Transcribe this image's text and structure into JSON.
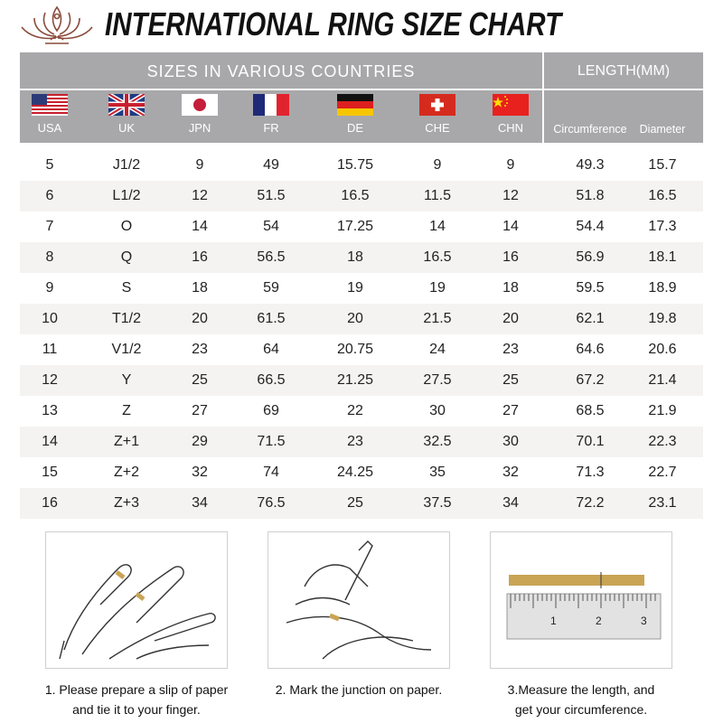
{
  "title": "INTERNATIONAL RING SIZE CHART",
  "header": {
    "group_left": "SIZES IN VARIOUS COUNTRIES",
    "group_right": "LENGTH(MM)",
    "countries": [
      {
        "label": "USA",
        "flag": "us-flag"
      },
      {
        "label": "UK",
        "flag": "uk-flag"
      },
      {
        "label": "JPN",
        "flag": "japan-flag"
      },
      {
        "label": "FR",
        "flag": "france-flag"
      },
      {
        "label": "DE",
        "flag": "germany-flag"
      },
      {
        "label": "CHE",
        "flag": "switzerland-flag"
      },
      {
        "label": "CHN",
        "flag": "china-flag"
      }
    ],
    "length_cols": [
      "Circumference",
      "Diameter"
    ]
  },
  "colors": {
    "header_bg": "#a8a8aa",
    "alt_row": "#f4f3f1",
    "tape": "#c9a455"
  },
  "rows": [
    [
      "5",
      "J1/2",
      "9",
      "49",
      "15.75",
      "9",
      "9",
      "49.3",
      "15.7"
    ],
    [
      "6",
      "L1/2",
      "12",
      "51.5",
      "16.5",
      "11.5",
      "12",
      "51.8",
      "16.5"
    ],
    [
      "7",
      "O",
      "14",
      "54",
      "17.25",
      "14",
      "14",
      "54.4",
      "17.3"
    ],
    [
      "8",
      "Q",
      "16",
      "56.5",
      "18",
      "16.5",
      "16",
      "56.9",
      "18.1"
    ],
    [
      "9",
      "S",
      "18",
      "59",
      "19",
      "19",
      "18",
      "59.5",
      "18.9"
    ],
    [
      "10",
      "T1/2",
      "20",
      "61.5",
      "20",
      "21.5",
      "20",
      "62.1",
      "19.8"
    ],
    [
      "11",
      "V1/2",
      "23",
      "64",
      "20.75",
      "24",
      "23",
      "64.6",
      "20.6"
    ],
    [
      "12",
      "Y",
      "25",
      "66.5",
      "21.25",
      "27.5",
      "25",
      "67.2",
      "21.4"
    ],
    [
      "13",
      "Z",
      "27",
      "69",
      "22",
      "30",
      "27",
      "68.5",
      "21.9"
    ],
    [
      "14",
      "Z+1",
      "29",
      "71.5",
      "23",
      "32.5",
      "30",
      "70.1",
      "22.3"
    ],
    [
      "15",
      "Z+2",
      "32",
      "74",
      "24.25",
      "35",
      "32",
      "71.3",
      "22.7"
    ],
    [
      "16",
      "Z+3",
      "34",
      "76.5",
      "25",
      "37.5",
      "34",
      "72.2",
      "23.1"
    ]
  ],
  "steps": [
    {
      "line1": "1. Please prepare a slip of paper",
      "line2": "and tie it to your finger."
    },
    {
      "line1": "2. Mark the junction on paper.",
      "line2": ""
    },
    {
      "line1": "3.Measure the length, and",
      "line2": "get your circumference."
    }
  ],
  "ruler_numbers": [
    "1",
    "2",
    "3"
  ]
}
